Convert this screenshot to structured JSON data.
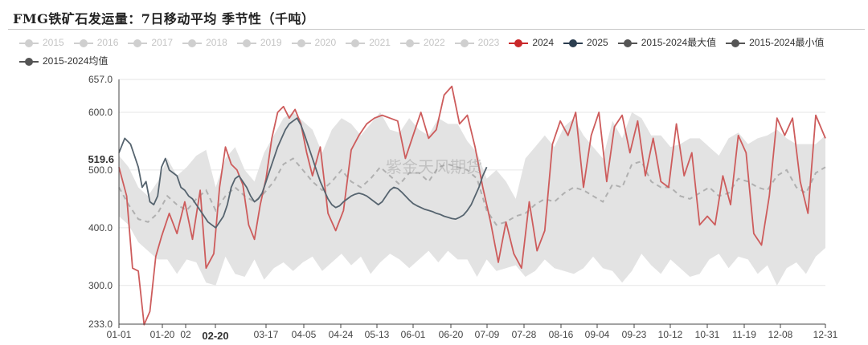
{
  "chart_data": {
    "type": "line",
    "title": "FMG铁矿石发运量：7日移动平均 季节性（千吨）",
    "ylim": [
      233.0,
      657.0
    ],
    "yticks": [
      "657.0",
      "600.0",
      "500.0",
      "400.0",
      "300.0",
      "233.0"
    ],
    "x_tick_labels": [
      "01-01",
      "01-20",
      "02",
      "02-20",
      "03-17",
      "04-05",
      "04-24",
      "05-13",
      "06-01",
      "06-20",
      "07-09",
      "07-28",
      "08-16",
      "09-04",
      "09-23",
      "10-12",
      "10-31",
      "11-19",
      "12-08",
      "12-31"
    ],
    "cursor": {
      "x": "02-20",
      "y": "519.6"
    },
    "watermark": "紫金天风期货",
    "legend": [
      {
        "name": "2015",
        "active": false
      },
      {
        "name": "2016",
        "active": false
      },
      {
        "name": "2017",
        "active": false
      },
      {
        "name": "2018",
        "active": false
      },
      {
        "name": "2019",
        "active": false
      },
      {
        "name": "2020",
        "active": false
      },
      {
        "name": "2021",
        "active": false
      },
      {
        "name": "2022",
        "active": false
      },
      {
        "name": "2023",
        "active": false
      },
      {
        "name": "2024",
        "active": true,
        "color": "#c9282a"
      },
      {
        "name": "2025",
        "active": true,
        "color": "#2c3e50"
      },
      {
        "name": "2015-2024最大值",
        "active": true,
        "color": "#555555"
      },
      {
        "name": "2015-2024最小值",
        "active": true,
        "color": "#555555"
      },
      {
        "name": "2015-2024均值",
        "active": true,
        "color": "#555555"
      }
    ],
    "colors": {
      "y2024": "#cd5c5c",
      "y2025": "#56646f",
      "band": "#e3e3e3",
      "mean": "#b0b0b0"
    },
    "series": [
      {
        "name": "2024",
        "x": [
          0,
          4,
          7,
          10,
          13,
          16,
          19,
          22,
          26,
          30,
          34,
          38,
          42,
          45,
          49,
          52,
          55,
          58,
          61,
          64,
          67,
          70,
          73,
          76,
          79,
          82,
          85,
          88,
          91,
          94,
          97,
          100,
          104,
          108,
          112,
          116,
          120,
          124,
          128,
          132,
          136,
          140,
          144,
          148,
          152,
          156,
          160,
          164,
          168,
          172,
          176,
          180,
          184,
          188,
          192,
          196,
          200,
          204,
          208,
          212,
          216,
          220,
          224,
          228,
          232,
          236,
          240,
          244,
          248,
          252,
          256,
          260,
          264,
          268,
          272,
          276,
          280,
          284,
          288,
          292,
          296,
          300,
          304,
          308,
          312,
          316,
          320,
          324,
          328,
          332,
          336,
          340,
          344,
          348,
          352,
          356,
          360,
          365
        ],
        "values": [
          505,
          455,
          330,
          325,
          232,
          255,
          350,
          385,
          425,
          390,
          445,
          380,
          465,
          330,
          355,
          470,
          540,
          510,
          500,
          475,
          405,
          380,
          440,
          485,
          555,
          600,
          610,
          590,
          605,
          580,
          530,
          490,
          540,
          425,
          395,
          430,
          535,
          560,
          580,
          590,
          595,
          590,
          585,
          520,
          560,
          600,
          555,
          570,
          630,
          645,
          580,
          595,
          540,
          470,
          410,
          340,
          410,
          355,
          330,
          445,
          360,
          395,
          545,
          585,
          560,
          600,
          470,
          560,
          600,
          480,
          575,
          595,
          530,
          585,
          490,
          555,
          480,
          470,
          580,
          490,
          530,
          405,
          420,
          405,
          490,
          440,
          560,
          530,
          390,
          370,
          455,
          590,
          560,
          590,
          480,
          425,
          595,
          555
        ]
      },
      {
        "name": "2025",
        "x": [
          0,
          3,
          6,
          8,
          10,
          12,
          14,
          16,
          18,
          20,
          22,
          24,
          26,
          28,
          30,
          32,
          34,
          36,
          38,
          40,
          42,
          44,
          46,
          48,
          50,
          52,
          54,
          56,
          58,
          60,
          62,
          64,
          66,
          68,
          70,
          72,
          74,
          76,
          78,
          80,
          82,
          84,
          86,
          88,
          90,
          92,
          94,
          96,
          98,
          100,
          102,
          104,
          106,
          108,
          110,
          112,
          114,
          116,
          118,
          120,
          122,
          124,
          126,
          128,
          130,
          132,
          134,
          136,
          138,
          140,
          142,
          144,
          146,
          148,
          150,
          152,
          154,
          156,
          158,
          160,
          162,
          164,
          166,
          168,
          170,
          172,
          174,
          176,
          178,
          180,
          182,
          184,
          186,
          188,
          190
        ],
        "values": [
          530,
          555,
          545,
          525,
          505,
          470,
          480,
          445,
          440,
          455,
          505,
          520,
          500,
          495,
          490,
          470,
          465,
          455,
          450,
          440,
          430,
          420,
          410,
          405,
          400,
          410,
          420,
          440,
          470,
          485,
          490,
          480,
          470,
          455,
          445,
          450,
          460,
          480,
          500,
          520,
          540,
          555,
          570,
          580,
          585,
          590,
          578,
          560,
          540,
          520,
          500,
          480,
          465,
          450,
          440,
          435,
          438,
          445,
          450,
          455,
          458,
          460,
          458,
          455,
          450,
          445,
          440,
          445,
          455,
          465,
          470,
          468,
          462,
          455,
          448,
          442,
          438,
          435,
          432,
          430,
          428,
          425,
          423,
          420,
          418,
          416,
          415,
          418,
          422,
          430,
          440,
          455,
          470,
          490,
          505
        ]
      },
      {
        "name": "2015-2024最大值",
        "x": [
          0,
          5,
          10,
          15,
          20,
          25,
          30,
          35,
          40,
          45,
          50,
          55,
          60,
          65,
          70,
          75,
          80,
          85,
          90,
          95,
          100,
          105,
          110,
          115,
          120,
          125,
          130,
          135,
          140,
          145,
          150,
          155,
          160,
          165,
          170,
          175,
          180,
          185,
          190,
          195,
          200,
          205,
          210,
          215,
          220,
          225,
          230,
          235,
          240,
          245,
          250,
          255,
          260,
          265,
          270,
          275,
          280,
          285,
          290,
          295,
          300,
          305,
          310,
          315,
          320,
          325,
          330,
          335,
          340,
          345,
          350,
          355,
          360,
          365
        ],
        "values": [
          525,
          505,
          470,
          455,
          480,
          520,
          490,
          505,
          525,
          535,
          470,
          520,
          540,
          500,
          480,
          530,
          560,
          590,
          600,
          585,
          570,
          530,
          570,
          590,
          580,
          560,
          580,
          600,
          570,
          565,
          590,
          570,
          560,
          590,
          580,
          580,
          550,
          530,
          485,
          500,
          480,
          450,
          520,
          540,
          560,
          540,
          575,
          590,
          560,
          540,
          520,
          585,
          555,
          600,
          590,
          560,
          560,
          540,
          545,
          555,
          555,
          540,
          525,
          555,
          565,
          545,
          555,
          560,
          570,
          555,
          545,
          545,
          545,
          560
        ]
      },
      {
        "name": "2015-2024最小值",
        "x": [
          0,
          5,
          10,
          15,
          20,
          25,
          30,
          35,
          40,
          45,
          50,
          55,
          60,
          65,
          70,
          75,
          80,
          85,
          90,
          95,
          100,
          105,
          110,
          115,
          120,
          125,
          130,
          135,
          140,
          145,
          150,
          155,
          160,
          165,
          170,
          175,
          180,
          185,
          190,
          195,
          200,
          205,
          210,
          215,
          220,
          225,
          230,
          235,
          240,
          245,
          250,
          255,
          260,
          265,
          270,
          275,
          280,
          285,
          290,
          295,
          300,
          305,
          310,
          315,
          320,
          325,
          330,
          335,
          340,
          345,
          350,
          355,
          360,
          365
        ],
        "values": [
          420,
          405,
          375,
          360,
          345,
          345,
          320,
          345,
          340,
          305,
          300,
          350,
          320,
          315,
          345,
          310,
          330,
          340,
          325,
          340,
          350,
          325,
          340,
          355,
          335,
          350,
          320,
          340,
          355,
          345,
          330,
          345,
          360,
          340,
          360,
          345,
          345,
          315,
          345,
          325,
          330,
          335,
          315,
          325,
          345,
          330,
          325,
          320,
          330,
          350,
          330,
          325,
          305,
          325,
          355,
          335,
          320,
          345,
          330,
          315,
          320,
          345,
          355,
          330,
          350,
          345,
          320,
          335,
          300,
          330,
          340,
          320,
          350,
          365
        ]
      },
      {
        "name": "2015-2024均值",
        "x": [
          0,
          5,
          10,
          15,
          20,
          25,
          30,
          35,
          40,
          45,
          50,
          55,
          60,
          65,
          70,
          75,
          80,
          85,
          90,
          95,
          100,
          105,
          110,
          115,
          120,
          125,
          130,
          135,
          140,
          145,
          150,
          155,
          160,
          165,
          170,
          175,
          180,
          185,
          190,
          195,
          200,
          205,
          210,
          215,
          220,
          225,
          230,
          235,
          240,
          245,
          250,
          255,
          260,
          265,
          270,
          275,
          280,
          285,
          290,
          295,
          300,
          305,
          310,
          315,
          320,
          325,
          330,
          335,
          340,
          345,
          350,
          355,
          360,
          365
        ],
        "values": [
          470,
          440,
          415,
          410,
          425,
          455,
          440,
          430,
          450,
          465,
          430,
          455,
          470,
          455,
          445,
          460,
          480,
          510,
          520,
          500,
          480,
          465,
          480,
          500,
          480,
          470,
          485,
          505,
          490,
          475,
          495,
          495,
          480,
          505,
          510,
          505,
          500,
          485,
          430,
          405,
          410,
          420,
          425,
          440,
          450,
          445,
          460,
          470,
          465,
          455,
          445,
          475,
          470,
          510,
          515,
          480,
          470,
          470,
          455,
          450,
          460,
          470,
          455,
          460,
          485,
          480,
          470,
          465,
          490,
          500,
          470,
          460,
          495,
          505
        ]
      }
    ]
  }
}
